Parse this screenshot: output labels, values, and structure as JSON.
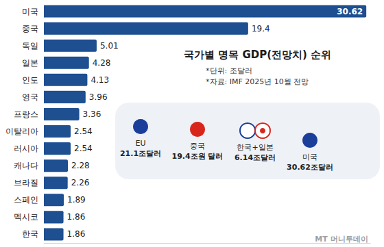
{
  "chart_data": {
    "type": "bar",
    "title": "국가별 명목 GDP(전망치) 순위",
    "orientation": "horizontal",
    "categories": [
      "미국",
      "중국",
      "독일",
      "일본",
      "인도",
      "영국",
      "프랑스",
      "이탈리아",
      "러시아",
      "캐나다",
      "브라질",
      "스페인",
      "멕시코",
      "한국"
    ],
    "values": [
      30.62,
      19.4,
      5.01,
      4.28,
      4.13,
      3.96,
      3.36,
      2.54,
      2.54,
      2.28,
      2.26,
      1.89,
      1.86,
      1.86
    ],
    "color": "#1d4f91",
    "xlim": [
      0,
      31
    ],
    "data_labels": true,
    "tick_labels": "y",
    "grid": false,
    "annotations": [
      "*단위: 조달러",
      "*자료: IMF 2025년 10월 전망",
      "EU",
      "21.1조달러",
      "중국",
      "19.4조원 달러",
      "한국+일본",
      "6.14조달러",
      "미국",
      "30.62조달러",
      "MT 머니투데이"
    ]
  }
}
